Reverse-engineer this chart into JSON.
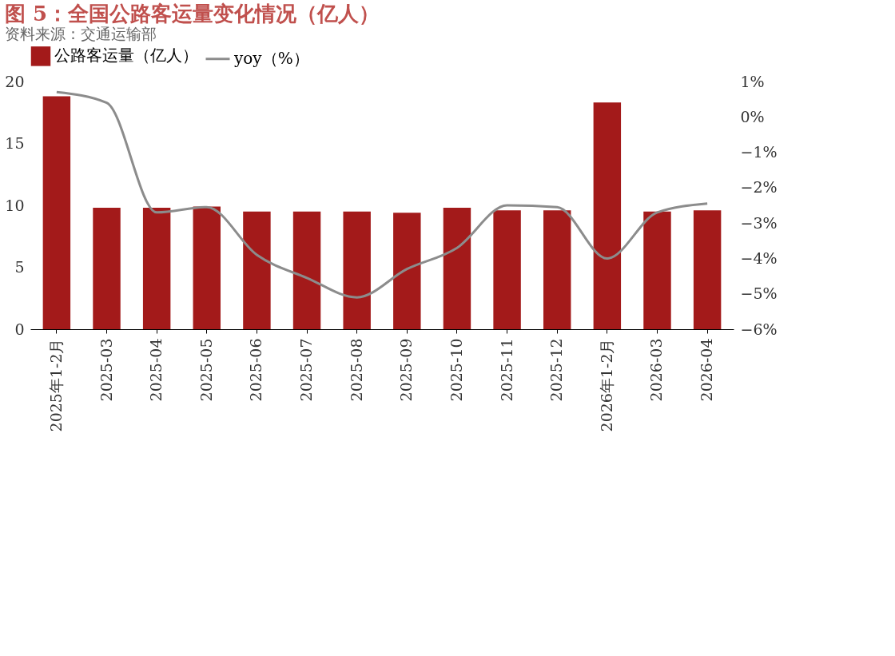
{
  "chart_data": {
    "type": "bar",
    "title": "图 5：全国公路客运量变化情况（亿人）",
    "categories": [
      "2025年1-2月",
      "2025-03",
      "2025-04",
      "2025-05",
      "2025-06",
      "2025-07",
      "2025-08",
      "2025-09",
      "2025-10",
      "2025-11",
      "2025-12",
      "2026年1-2月",
      "2026-03",
      "2026-04"
    ],
    "series": [
      {
        "name": "公路客运量（亿人）",
        "color": "#a31a1a",
        "values": [
          18.8,
          9.8,
          9.8,
          9.9,
          9.5,
          9.5,
          9.5,
          9.4,
          9.8,
          9.6,
          9.6,
          18.3,
          9.5,
          9.6
        ]
      },
      {
        "name": "yoy（%）",
        "type": "line",
        "axis": "y2",
        "color": "#8c8c8c",
        "values": [
          0.7,
          0.4,
          -2.7,
          -2.55,
          -3.9,
          -4.55,
          -5.1,
          -4.3,
          -3.7,
          -2.5,
          -2.55,
          -4.0,
          -2.7,
          -2.45
        ]
      }
    ],
    "ylim": [
      0,
      20
    ],
    "yticks": [
      0,
      5,
      10,
      15,
      20
    ],
    "y2lim": [
      -6,
      1
    ],
    "y2ticks": [
      {
        "value": 1,
        "label": "1%"
      },
      {
        "value": 0,
        "label": "0%"
      },
      {
        "value": -1,
        "label": "−1%"
      },
      {
        "value": -2,
        "label": "−2%"
      },
      {
        "value": -3,
        "label": "−3%"
      },
      {
        "value": -4,
        "label": "−4%"
      },
      {
        "value": -5,
        "label": "−5%"
      },
      {
        "value": -6,
        "label": "−6%"
      }
    ],
    "legend": "top",
    "grid": false,
    "annotations": [
      "资料来源：交通运输部"
    ]
  }
}
